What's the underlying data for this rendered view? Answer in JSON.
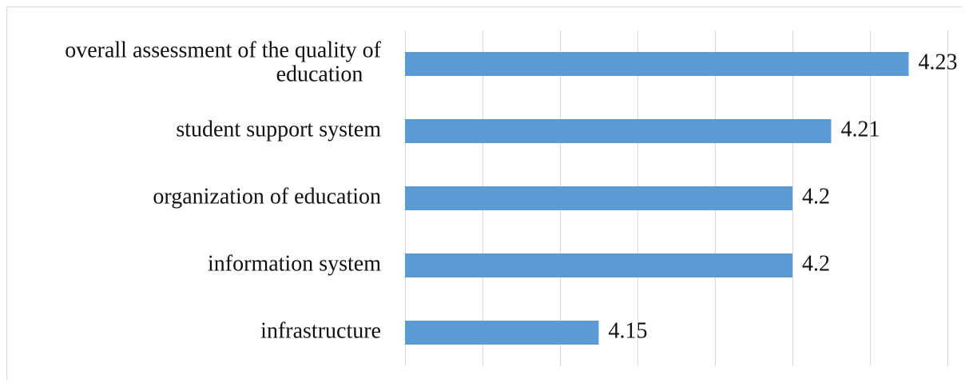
{
  "chart_data": {
    "type": "bar",
    "orientation": "horizontal",
    "categories": [
      "overall assessment of the quality of education",
      "student support system",
      "organization of education",
      "information system",
      "infrastructure"
    ],
    "category_label_lines": [
      [
        "overall assessment of the quality of",
        "education"
      ],
      [
        "student support system"
      ],
      [
        "organization of education"
      ],
      [
        "information system"
      ],
      [
        "infrastructure"
      ]
    ],
    "values": [
      4.23,
      4.21,
      4.2,
      4.2,
      4.15
    ],
    "data_labels": [
      "4.23",
      "4.21",
      "4.2",
      "4.2",
      "4.15"
    ],
    "xlim": [
      4.1,
      4.24
    ],
    "grid": true,
    "legend": "none",
    "title": "",
    "xlabel": "",
    "ylabel": "",
    "bar_color": "#5b9bd5"
  }
}
